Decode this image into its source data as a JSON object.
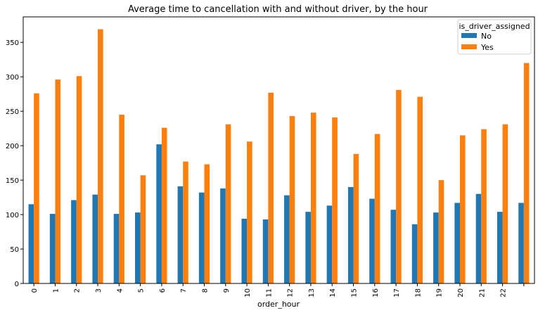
{
  "chart_data": {
    "type": "bar",
    "title": "Average time to cancellation with and without driver, by the hour",
    "xlabel": "order_hour",
    "ylabel": "",
    "categories": [
      "0",
      "1",
      "2",
      "3",
      "4",
      "5",
      "6",
      "7",
      "8",
      "9",
      "10",
      "11",
      "12",
      "13",
      "14",
      "15",
      "16",
      "17",
      "18",
      "19",
      "20",
      "21",
      "22",
      ""
    ],
    "series": [
      {
        "name": "No",
        "color": "#1f77b4",
        "values": [
          115,
          101,
          121,
          129,
          101,
          103,
          202,
          141,
          132,
          138,
          94,
          93,
          128,
          104,
          113,
          140,
          123,
          107,
          86,
          103,
          117,
          130,
          104,
          117
        ]
      },
      {
        "name": "Yes",
        "color": "#ff7f0e",
        "values": [
          276,
          296,
          301,
          369,
          245,
          157,
          226,
          177,
          173,
          231,
          206,
          277,
          243,
          248,
          241,
          188,
          217,
          281,
          271,
          150,
          215,
          224,
          231,
          320
        ]
      }
    ],
    "ylim": [
      0,
      387
    ],
    "yticks": [
      0,
      50,
      100,
      150,
      200,
      250,
      300,
      350
    ],
    "legend": {
      "title": "is_driver_assigned",
      "position": "top-right"
    },
    "grid": false
  }
}
